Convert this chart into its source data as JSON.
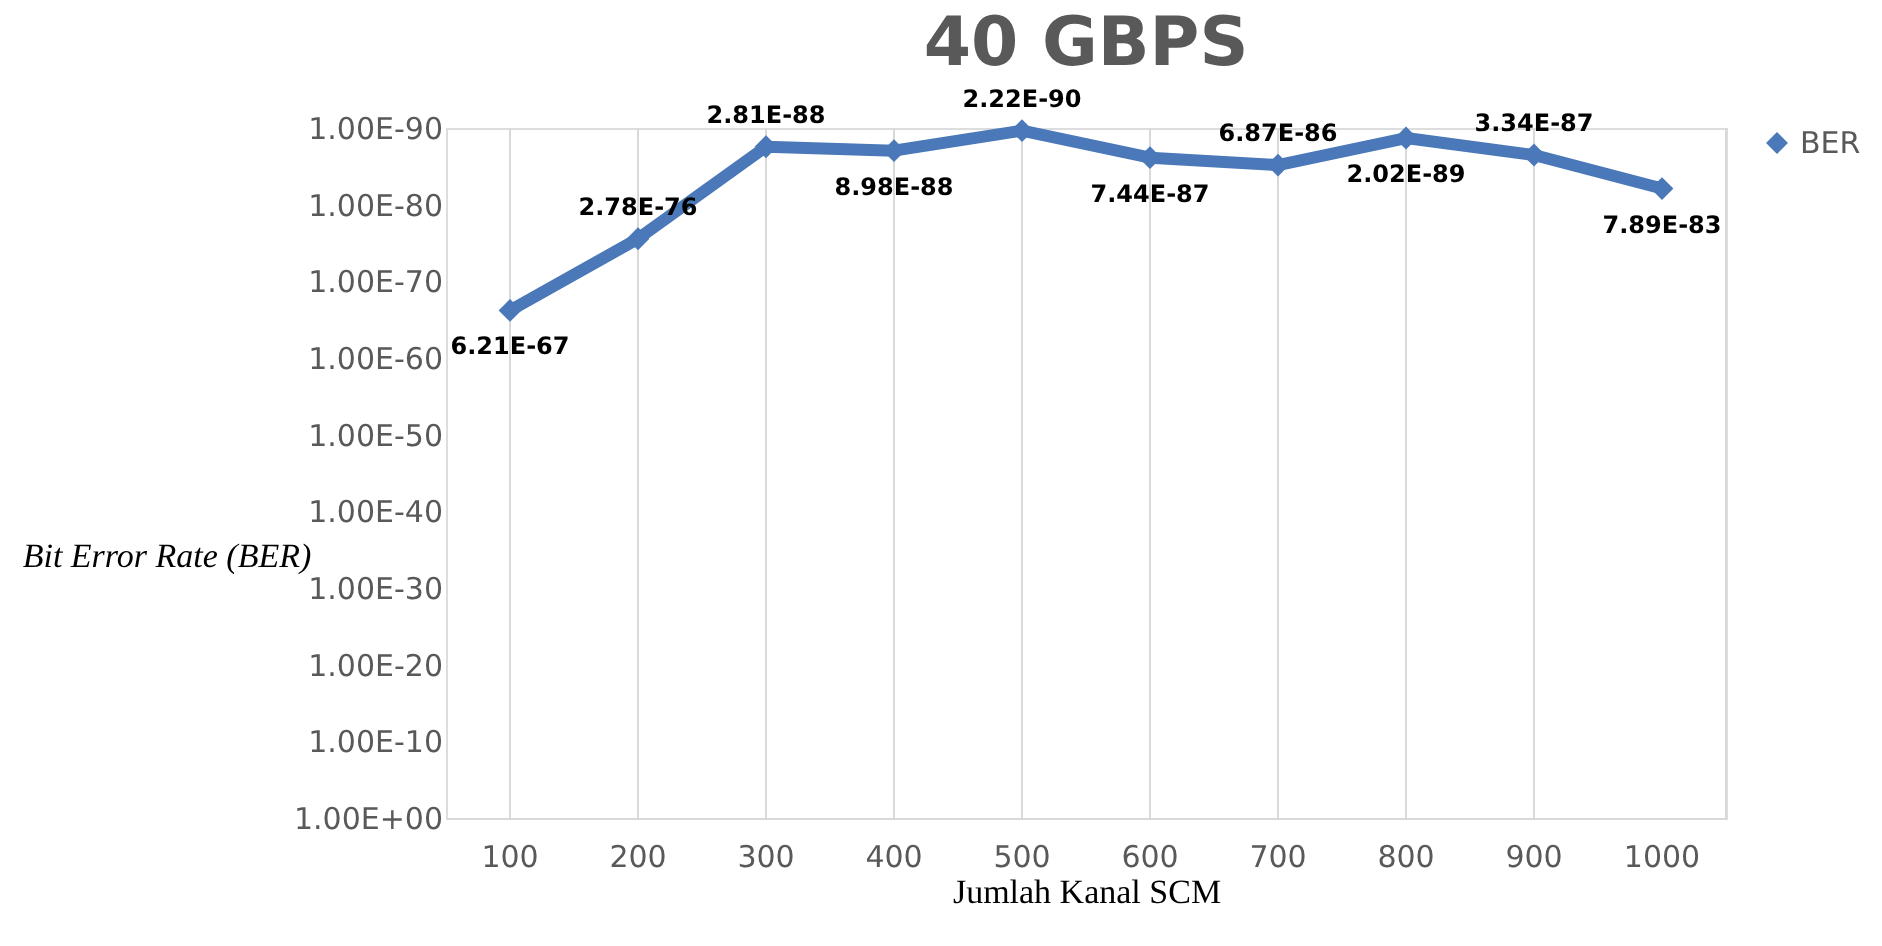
{
  "chart_data": {
    "type": "line",
    "title": "40 GBPS",
    "xlabel": "Jumlah Kanal SCM",
    "ylabel": "Bit Error Rate (BER)",
    "categories": [
      "100",
      "200",
      "300",
      "400",
      "500",
      "600",
      "700",
      "800",
      "900",
      "1000"
    ],
    "series": [
      {
        "name": "BER",
        "color": "#4a78b8",
        "values": [
          6.21e-67,
          2.78e-76,
          2.81e-88,
          8.98e-88,
          2.22e-90,
          7.44e-87,
          6.87e-86,
          2.02e-89,
          3.34e-87,
          7.89e-83
        ],
        "value_labels": [
          "6.21E-67",
          "2.78E-76",
          "2.81E-88",
          "8.98E-88",
          "2.22E-90",
          "7.44E-87",
          "6.87E-86",
          "2.02E-89",
          "3.34E-87",
          "7.89E-83"
        ]
      }
    ],
    "log": true,
    "ylim": [
      1,
      1e-90
    ],
    "yticks": [
      {
        "value": 1,
        "label": "1.00E+00"
      },
      {
        "value": 1e-10,
        "label": "1.00E-10"
      },
      {
        "value": 1e-20,
        "label": "1.00E-20"
      },
      {
        "value": 1e-30,
        "label": "1.00E-30"
      },
      {
        "value": 1e-40,
        "label": "1.00E-40"
      },
      {
        "value": 1e-50,
        "label": "1.00E-50"
      },
      {
        "value": 1e-60,
        "label": "1.00E-60"
      },
      {
        "value": 1e-70,
        "label": "1.00E-70"
      },
      {
        "value": 1e-80,
        "label": "1.00E-80"
      },
      {
        "value": 1e-90,
        "label": "1.00E-90"
      }
    ],
    "grid": "x",
    "legend": "right",
    "marker": "diamond",
    "line_style": "solid"
  }
}
